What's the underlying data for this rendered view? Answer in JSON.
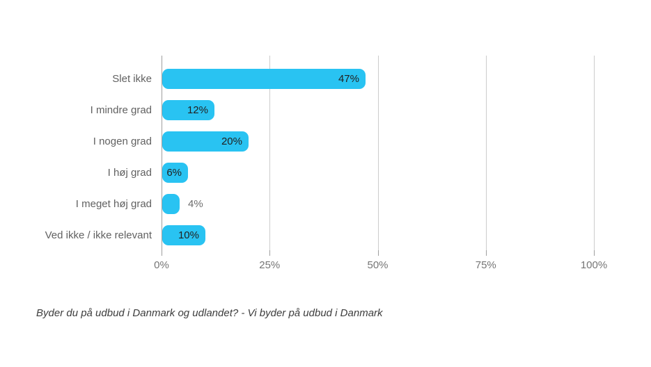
{
  "chart_data": {
    "type": "bar",
    "orientation": "horizontal",
    "title": "",
    "categories": [
      "Slet ikke",
      "I mindre grad",
      "I nogen grad",
      "I høj grad",
      "I meget høj grad",
      "Ved ikke / ikke relevant"
    ],
    "values": [
      47,
      12,
      20,
      6,
      4,
      10
    ],
    "value_labels": [
      "47%",
      "12%",
      "20%",
      "6%",
      "4%",
      "10%"
    ],
    "label_inside": [
      true,
      true,
      true,
      true,
      false,
      true
    ],
    "x_ticks": [
      {
        "value": 0,
        "label": "0%"
      },
      {
        "value": 25,
        "label": "25%"
      },
      {
        "value": 50,
        "label": "50%"
      },
      {
        "value": 75,
        "label": "75%"
      },
      {
        "value": 100,
        "label": "100%"
      }
    ],
    "xlim": [
      0,
      100
    ],
    "grid": true,
    "legend": "none",
    "bar_color": "#29c3f2"
  },
  "caption": "Byder du på udbud i Danmark og udlandet? - Vi byder på udbud i Danmark",
  "colors": {
    "background": "#ffffff",
    "bar": "#29c3f2",
    "category_label": "#616161",
    "value_label_inside": "#212121",
    "value_label_outside": "#6e6e6e",
    "axis_label": "#757575",
    "gridline": "#cccccc",
    "axis_line": "#9e9e9e",
    "tick": "#9e9e9e",
    "caption": "#3d3d3d"
  }
}
